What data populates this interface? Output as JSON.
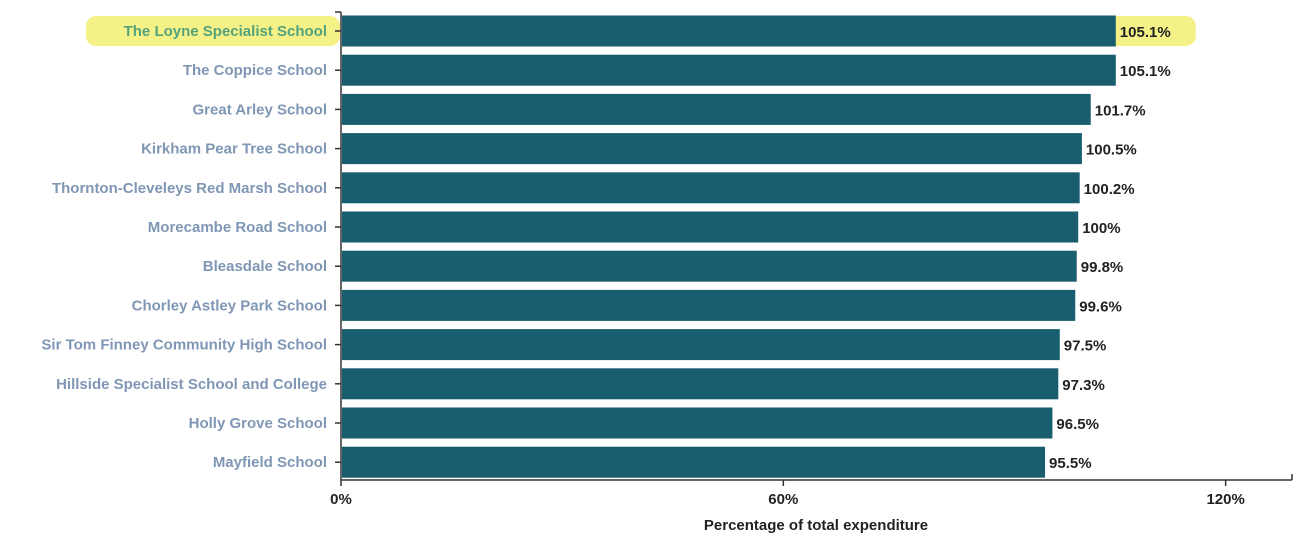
{
  "chart_data": {
    "type": "bar",
    "orientation": "horizontal",
    "categories": [
      "The Loyne Specialist School",
      "The Coppice School",
      "Great Arley School",
      "Kirkham Pear Tree School",
      "Thornton-Cleveleys Red Marsh School",
      "Morecambe Road School",
      "Bleasdale School",
      "Chorley Astley Park School",
      "Sir Tom Finney Community High School",
      "Hillside Specialist School and College",
      "Holly Grove School",
      "Mayfield School"
    ],
    "values": [
      105.1,
      105.1,
      101.7,
      100.5,
      100.2,
      100,
      99.8,
      99.6,
      97.5,
      97.3,
      96.5,
      95.5
    ],
    "value_labels": [
      "105.1%",
      "105.1%",
      "101.7%",
      "100.5%",
      "100.2%",
      "100%",
      "99.8%",
      "99.6%",
      "97.5%",
      "97.3%",
      "96.5%",
      "95.5%"
    ],
    "highlighted_category": "The Loyne Specialist School",
    "xlabel": "Percentage of total expenditure",
    "xticks": [
      0,
      60,
      120
    ],
    "xtick_labels": [
      "0%",
      "60%",
      "120%"
    ],
    "xlim": [
      0,
      129
    ],
    "grid": false,
    "colors": {
      "bar": "#195e6e",
      "category_label": "#7f97b4",
      "highlight_label": "#55a37c",
      "highlight_background": "#f3f07a",
      "value_label": "#222222",
      "axis": "#333333"
    }
  }
}
